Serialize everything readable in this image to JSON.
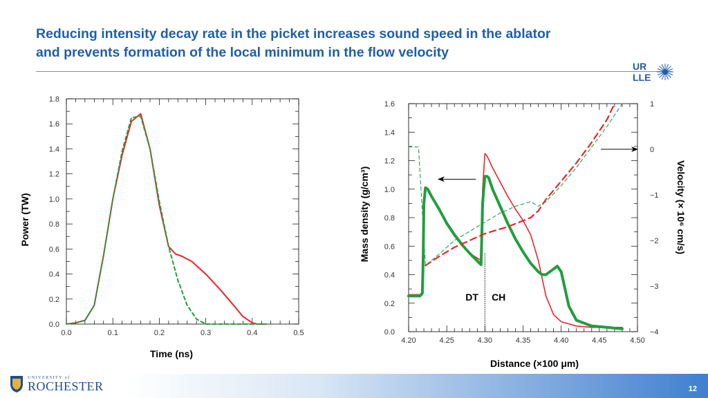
{
  "slide": {
    "title_line1": "Reducing intensity decay rate in the picket increases sound speed in the ablator",
    "title_line2": "and prevents formation of the local minimum in the flow velocity",
    "page_number": "12",
    "logo_top": "UR",
    "logo_bottom": "LLE",
    "university_small": "UNIVERSITY of",
    "university_big": "ROCHESTER"
  },
  "chart_data": [
    {
      "type": "line",
      "title": "",
      "xlabel": "Time (ns)",
      "ylabel": "Power (TW)",
      "xlim": [
        0.0,
        0.5
      ],
      "ylim": [
        0.0,
        1.8
      ],
      "xticks": [
        "0.0",
        "0.1",
        "0.2",
        "0.3",
        "0.4",
        "0.5"
      ],
      "yticks": [
        "0.0",
        "0.2",
        "0.4",
        "0.6",
        "0.8",
        "1.0",
        "1.2",
        "1.4",
        "1.6",
        "1.8"
      ],
      "grid": false,
      "series": [
        {
          "color": "#e8242a",
          "style": "solid",
          "x": [
            0.0,
            0.02,
            0.04,
            0.06,
            0.08,
            0.1,
            0.12,
            0.14,
            0.16,
            0.18,
            0.2,
            0.22,
            0.235,
            0.25,
            0.27,
            0.3,
            0.33,
            0.36,
            0.38,
            0.4,
            0.41,
            0.43
          ],
          "y": [
            0.0,
            0.01,
            0.03,
            0.15,
            0.55,
            1.0,
            1.35,
            1.62,
            1.68,
            1.4,
            0.95,
            0.62,
            0.56,
            0.54,
            0.5,
            0.4,
            0.28,
            0.15,
            0.06,
            0.01,
            0.0,
            0.0
          ]
        },
        {
          "color": "#1f9e3e",
          "style": "dashed",
          "x": [
            0.0,
            0.02,
            0.04,
            0.06,
            0.08,
            0.1,
            0.12,
            0.14,
            0.16,
            0.18,
            0.2,
            0.22,
            0.24,
            0.26,
            0.28,
            0.3,
            0.33,
            0.36,
            0.43
          ],
          "y": [
            0.0,
            0.01,
            0.03,
            0.15,
            0.55,
            1.0,
            1.38,
            1.65,
            1.66,
            1.4,
            0.98,
            0.62,
            0.35,
            0.15,
            0.04,
            0.0,
            0.0,
            0.0,
            0.0
          ]
        }
      ]
    },
    {
      "type": "line",
      "title": "",
      "xlabel": "Distance (×100 μm)",
      "ylabel": "Mass density (g/cm³)",
      "y2label": "Velocity (× 10⁶ cm/s)",
      "xlim": [
        4.2,
        4.5
      ],
      "ylim": [
        0.0,
        1.6
      ],
      "y2lim": [
        -4,
        1
      ],
      "xticks": [
        "4.20",
        "4.25",
        "4.30",
        "4.35",
        "4.40",
        "4.45",
        "4.50"
      ],
      "yticks": [
        "0.0",
        "0.2",
        "0.4",
        "0.6",
        "0.8",
        "1.0",
        "1.2",
        "1.4",
        "1.6"
      ],
      "y2ticks": [
        "−4",
        "−3",
        "−2",
        "−1",
        "0",
        "1"
      ],
      "grid": false,
      "annotations": [
        {
          "text": "DT",
          "x": 4.283,
          "y": 0.2
        },
        {
          "text": "CH",
          "x": 4.318,
          "y": 0.2
        }
      ],
      "divider_x": 4.3,
      "series": [
        {
          "axis": "density",
          "color": "#e8242a",
          "style": "solid",
          "width": 1.6,
          "x": [
            4.2,
            4.215,
            4.218,
            4.219,
            4.22,
            4.222,
            4.225,
            4.23,
            4.24,
            4.25,
            4.26,
            4.27,
            4.28,
            4.295,
            4.297,
            4.3,
            4.302,
            4.305,
            4.31,
            4.32,
            4.33,
            4.34,
            4.35,
            4.36,
            4.37,
            4.38,
            4.39,
            4.4,
            4.42,
            4.44,
            4.46,
            4.48
          ],
          "y": [
            0.26,
            0.26,
            0.28,
            0.5,
            0.9,
            1.01,
            1.0,
            0.95,
            0.86,
            0.77,
            0.69,
            0.62,
            0.55,
            0.5,
            1.0,
            1.25,
            1.24,
            1.21,
            1.15,
            1.05,
            0.95,
            0.86,
            0.78,
            0.68,
            0.5,
            0.25,
            0.12,
            0.07,
            0.04,
            0.03,
            0.03,
            0.03
          ]
        },
        {
          "axis": "density",
          "color": "#1f9e3e",
          "style": "solid",
          "width": 4,
          "x": [
            4.2,
            4.215,
            4.218,
            4.219,
            4.22,
            4.222,
            4.225,
            4.23,
            4.24,
            4.25,
            4.26,
            4.27,
            4.28,
            4.295,
            4.297,
            4.3,
            4.303,
            4.305,
            4.31,
            4.32,
            4.33,
            4.34,
            4.35,
            4.36,
            4.37,
            4.375,
            4.38,
            4.39,
            4.395,
            4.4,
            4.405,
            4.41,
            4.42,
            4.44,
            4.46,
            4.48
          ],
          "y": [
            0.25,
            0.25,
            0.27,
            0.5,
            0.9,
            1.01,
            1.0,
            0.95,
            0.86,
            0.76,
            0.68,
            0.61,
            0.55,
            0.47,
            0.9,
            1.09,
            1.09,
            1.08,
            1.0,
            0.88,
            0.76,
            0.65,
            0.56,
            0.48,
            0.42,
            0.4,
            0.4,
            0.44,
            0.46,
            0.42,
            0.3,
            0.18,
            0.08,
            0.04,
            0.03,
            0.02
          ]
        },
        {
          "axis": "velocity",
          "color": "#e8242a",
          "style": "dashed",
          "width": 2.2,
          "x": [
            4.222,
            4.24,
            4.26,
            4.28,
            4.3,
            4.33,
            4.36,
            4.37,
            4.38,
            4.4,
            4.42,
            4.44,
            4.46,
            4.47
          ],
          "y": [
            -2.55,
            -2.35,
            -2.15,
            -2.0,
            -1.85,
            -1.7,
            -1.5,
            -1.35,
            -1.1,
            -0.7,
            -0.3,
            0.15,
            0.65,
            1.0
          ]
        },
        {
          "axis": "velocity",
          "color": "#1f9e3e",
          "style": "dashed",
          "width": 1.1,
          "x": [
            4.2,
            4.213,
            4.222,
            4.24,
            4.26,
            4.28,
            4.3,
            4.32,
            4.34,
            4.36,
            4.37,
            4.38,
            4.4,
            4.42,
            4.44,
            4.46,
            4.48
          ],
          "y": [
            0.05,
            0.05,
            -2.55,
            -2.3,
            -2.0,
            -1.8,
            -1.6,
            -1.4,
            -1.25,
            -1.15,
            -1.25,
            -1.15,
            -0.8,
            -0.4,
            0.05,
            0.5,
            1.0
          ]
        }
      ]
    }
  ]
}
